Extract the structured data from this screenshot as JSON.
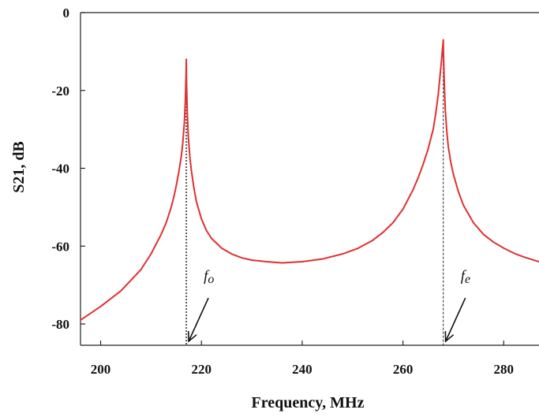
{
  "chart_data": {
    "type": "line",
    "xlabel": "Frequency, MHz",
    "ylabel": "S21, dB",
    "xlim": [
      196,
      287
    ],
    "ylim": [
      -85,
      0
    ],
    "x_ticks": [
      200,
      220,
      240,
      260,
      280
    ],
    "x_tick_labels": [
      "200",
      "220",
      "240",
      "260",
      "280"
    ],
    "y_ticks": [
      0,
      -20,
      -40,
      -60,
      -80
    ],
    "y_tick_labels": [
      "0",
      "-20",
      "-40",
      "-60",
      "-80"
    ],
    "grid": false,
    "series": [
      {
        "color": "#e03030",
        "x": [
          196,
          200,
          204,
          208,
          210,
          212,
          213,
          214,
          214.5,
          215,
          215.5,
          216,
          216.3,
          216.6,
          216.8,
          216.95,
          217.0,
          217.05,
          217.2,
          217.4,
          217.7,
          218,
          218.5,
          219,
          220,
          221,
          222,
          224,
          226,
          228,
          230,
          233,
          236,
          240,
          244,
          248,
          251,
          254,
          256,
          258,
          260,
          262,
          263,
          264,
          265,
          266,
          266.5,
          267,
          267.3,
          267.6,
          267.8,
          267.95,
          268.0,
          268.05,
          268.2,
          268.4,
          268.7,
          269,
          269.5,
          270,
          271,
          272,
          274,
          276,
          278,
          280,
          282,
          284,
          287
        ],
        "y": [
          -79,
          -75.5,
          -71.5,
          -66,
          -62,
          -57,
          -54,
          -50,
          -47.5,
          -44.5,
          -41,
          -37,
          -33.5,
          -28.5,
          -23,
          -16,
          -12,
          -18,
          -26,
          -32,
          -37,
          -40.5,
          -45,
          -48.5,
          -53,
          -56,
          -58,
          -60.5,
          -62,
          -63,
          -63.6,
          -64,
          -64.3,
          -64,
          -63.3,
          -62,
          -60.6,
          -58.5,
          -56.5,
          -54,
          -50.5,
          -45.5,
          -42.5,
          -39,
          -35,
          -30,
          -26,
          -21,
          -17,
          -13,
          -10,
          -8,
          -7,
          -11,
          -18,
          -25,
          -30.5,
          -34.5,
          -38.5,
          -41.5,
          -46,
          -49.5,
          -54,
          -57,
          -59,
          -60.5,
          -61.8,
          -62.8,
          -64
        ]
      }
    ],
    "markers": [
      {
        "x": 217.0,
        "y_top": -12,
        "label": "f",
        "label_sub": "o",
        "style": "dotted"
      },
      {
        "x": 268.0,
        "y_top": -7,
        "label": "f",
        "label_sub": "e",
        "style": "dashed"
      }
    ]
  }
}
